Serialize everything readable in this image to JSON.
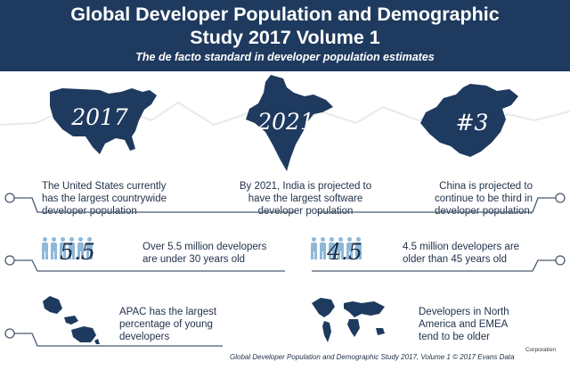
{
  "header": {
    "title_line1": "Global Developer Population and Demographic",
    "title_line2": "Study 2017 Volume 1",
    "subtitle": "The de facto standard in developer population estimates"
  },
  "highlights": [
    {
      "map": "usa-map",
      "label": "2017",
      "caption": [
        "The United States currently",
        "has the largest countrywide",
        "developer population"
      ]
    },
    {
      "map": "india-map",
      "label": "2021",
      "caption": [
        "By 2021, India is projected to",
        "have the largest software",
        "developer population"
      ]
    },
    {
      "map": "china-map",
      "label": "#3",
      "caption": [
        "China is projected to",
        "continue to be third in",
        "developer population."
      ]
    }
  ],
  "stats": [
    {
      "value": "5.5",
      "caption": [
        "Over 5.5 million developers",
        "are under 30 years old"
      ],
      "people": 6
    },
    {
      "value": "4.5",
      "caption": [
        "4.5 million developers are",
        "older than 45 years old"
      ],
      "people": 6
    }
  ],
  "regions": [
    {
      "map": "asia-pacific-map",
      "caption": [
        "APAC has the largest",
        "percentage of young",
        "developers"
      ]
    },
    {
      "map": "world-map",
      "caption": [
        "Developers in North",
        "America and EMEA",
        "tend to be older"
      ]
    }
  ],
  "footer": "Global Developer Population and Demographic Study 2017, Volume 1 © 2017 Evans Data",
  "watermark": "Corporation",
  "colors": {
    "navy": "#1f3a5f",
    "figure": "#8fb8d8",
    "line": "#4a5a6e"
  }
}
